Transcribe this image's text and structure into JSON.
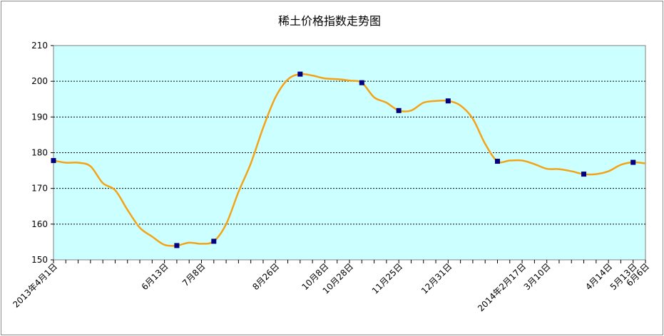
{
  "chart_data": {
    "type": "line",
    "title": "稀土价格指数走势图",
    "xlabel": "",
    "ylabel": "",
    "ylim": [
      150,
      210
    ],
    "yticks": [
      150,
      160,
      170,
      180,
      190,
      200,
      210
    ],
    "grid": true,
    "colors": {
      "line": "#f5a316",
      "marker": "#000080",
      "plot_bg": "#ccffff",
      "grid": "#000000"
    },
    "x_index_count": 49,
    "x_labels": [
      {
        "i": 0,
        "label": "2013年4月1日"
      },
      {
        "i": 9,
        "label": "6月13日"
      },
      {
        "i": 12,
        "label": "7月8日"
      },
      {
        "i": 18,
        "label": "8月26日"
      },
      {
        "i": 22,
        "label": "10月8日"
      },
      {
        "i": 24,
        "label": "10月28日"
      },
      {
        "i": 28,
        "label": "11月25日"
      },
      {
        "i": 32,
        "label": "12月31日"
      },
      {
        "i": 38,
        "label": "2014年2月17日"
      },
      {
        "i": 40,
        "label": "3月10日"
      },
      {
        "i": 45,
        "label": "4月14日"
      },
      {
        "i": 47,
        "label": "5月13日"
      },
      {
        "i": 48,
        "label": "6月6日"
      }
    ],
    "series": [
      {
        "x": [
          0,
          1,
          2,
          3,
          4,
          5,
          6,
          7,
          8,
          9,
          10,
          11,
          12,
          13,
          14,
          15,
          16,
          17,
          18,
          19,
          20,
          21,
          22,
          23,
          24,
          25,
          26,
          27,
          28,
          29,
          30,
          31,
          32,
          33,
          34,
          35,
          36,
          37,
          38,
          39,
          40,
          41,
          42,
          43,
          44,
          45,
          46,
          47,
          48
        ],
        "values": [
          177.8,
          177.2,
          177.2,
          176.2,
          171.5,
          169.5,
          164.0,
          159.0,
          156.5,
          154.2,
          154.0,
          154.8,
          154.5,
          155.2,
          160.0,
          169.0,
          177.0,
          187.0,
          195.5,
          200.5,
          202.0,
          201.6,
          200.8,
          200.6,
          200.2,
          199.6,
          195.5,
          194.0,
          191.8,
          191.8,
          194.0,
          194.5,
          194.5,
          193.2,
          189.5,
          182.5,
          177.6,
          177.8,
          177.8,
          176.8,
          175.5,
          175.4,
          174.8,
          174.0,
          174.0,
          174.8,
          176.6,
          177.3,
          177.0
        ],
        "markers": [
          0,
          10,
          13,
          20,
          25,
          28,
          32,
          36,
          43,
          47
        ]
      }
    ]
  }
}
